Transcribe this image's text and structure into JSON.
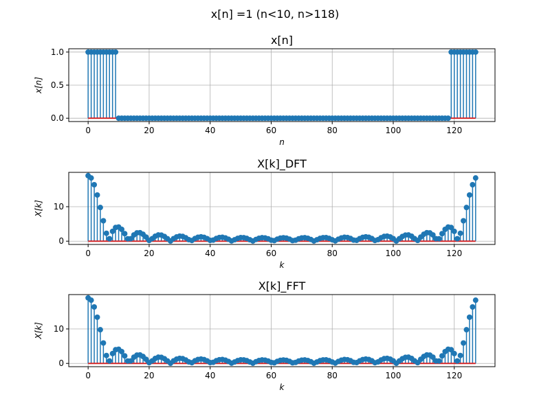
{
  "suptitle": "x[n] =1 (n<10, n>118)",
  "colors": {
    "stem": "#1f77b4",
    "baseline": "#d62728",
    "grid": "#b0b0b0"
  },
  "chart_data": [
    {
      "type": "stem",
      "title": "x[n]",
      "xlabel": "n",
      "ylabel": "x[n]",
      "xlim": [
        -6.35,
        133.35
      ],
      "ylim": [
        -0.05,
        1.05
      ],
      "xticks": [
        0,
        20,
        40,
        60,
        80,
        100,
        120
      ],
      "yticks": [
        0.0,
        0.5,
        1.0
      ],
      "ytick_labels": [
        "0.0",
        "0.5",
        "1.0"
      ],
      "grid": true,
      "signal": "x[n] = 1 for n < 10 or n > 118, else 0; n = 0..127"
    },
    {
      "type": "stem",
      "title": "X[k]_DFT",
      "xlabel": "k",
      "ylabel": "X[k]",
      "xlim": [
        -6.35,
        133.35
      ],
      "ylim": [
        -0.95,
        19.95
      ],
      "xticks": [
        0,
        20,
        40,
        60,
        80,
        100,
        120
      ],
      "yticks": [
        0,
        10
      ],
      "ytick_labels": [
        "0",
        "10"
      ],
      "grid": true,
      "values_note": "|DFT| of x[n], N = 128"
    },
    {
      "type": "stem",
      "title": "X[k]_FFT",
      "xlabel": "k",
      "ylabel": "X[k]",
      "xlim": [
        -6.35,
        133.35
      ],
      "ylim": [
        -0.95,
        19.95
      ],
      "xticks": [
        0,
        20,
        40,
        60,
        80,
        100,
        120
      ],
      "yticks": [
        0,
        10
      ],
      "ytick_labels": [
        "0",
        "10"
      ],
      "grid": true,
      "values_note": "|FFT| of x[n], N = 128"
    }
  ]
}
